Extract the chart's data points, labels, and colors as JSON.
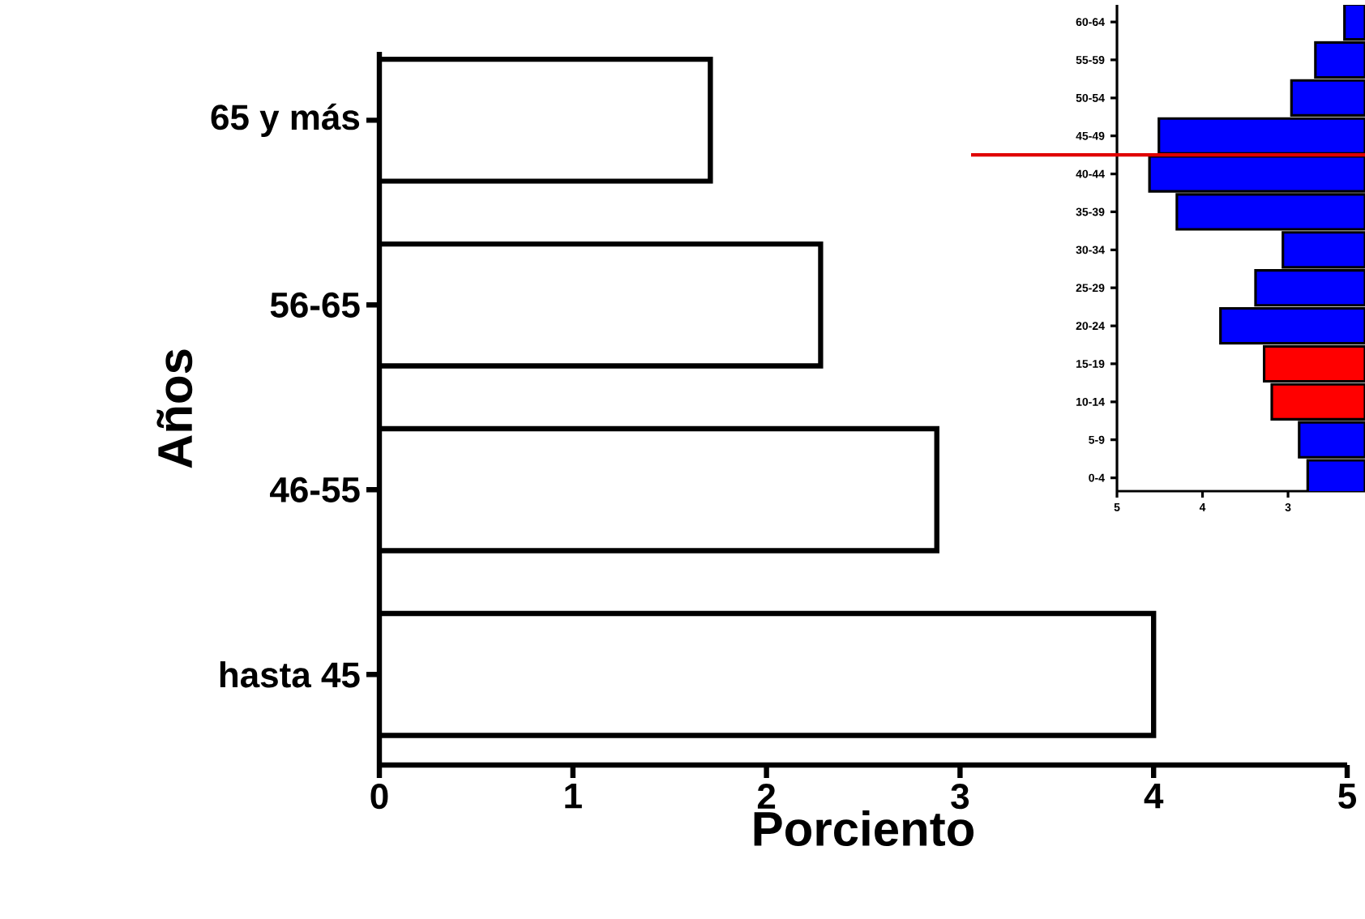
{
  "chart_data": [
    {
      "type": "bar",
      "orientation": "horizontal",
      "categories": [
        "65 y más",
        "56-65",
        "46-55",
        "hasta 45"
      ],
      "values": [
        1.71,
        2.28,
        2.88,
        4.0
      ],
      "color": "#ffffff",
      "xlabel": "Porciento",
      "ylabel": "Años",
      "xlim": [
        0,
        5
      ],
      "xticks": [
        0,
        1,
        2,
        3,
        4,
        5
      ],
      "grid": false,
      "legend": false
    },
    {
      "type": "bar",
      "orientation": "horizontal",
      "categories": [
        "60-64",
        "55-59",
        "50-54",
        "45-49",
        "40-44",
        "35-39",
        "30-34",
        "25-29",
        "20-24",
        "15-19",
        "10-14",
        "5-9",
        "0-4"
      ],
      "values": [
        2.34,
        2.68,
        2.96,
        4.51,
        4.62,
        4.3,
        3.06,
        3.38,
        3.79,
        3.28,
        3.19,
        2.87,
        2.77
      ],
      "colors": [
        "#0000ff",
        "#0000ff",
        "#0000ff",
        "#0000ff",
        "#0000ff",
        "#0000ff",
        "#0000ff",
        "#0000ff",
        "#0000ff",
        "#ff0000",
        "#ff0000",
        "#0000ff",
        "#0000ff"
      ],
      "xlim": [
        5,
        2.1
      ],
      "xticks": [
        5,
        4,
        3
      ],
      "grid": false,
      "legend": false,
      "ref_lines": [
        {
          "axis": "y",
          "value": "40-44",
          "color": "#e00000"
        }
      ]
    }
  ]
}
